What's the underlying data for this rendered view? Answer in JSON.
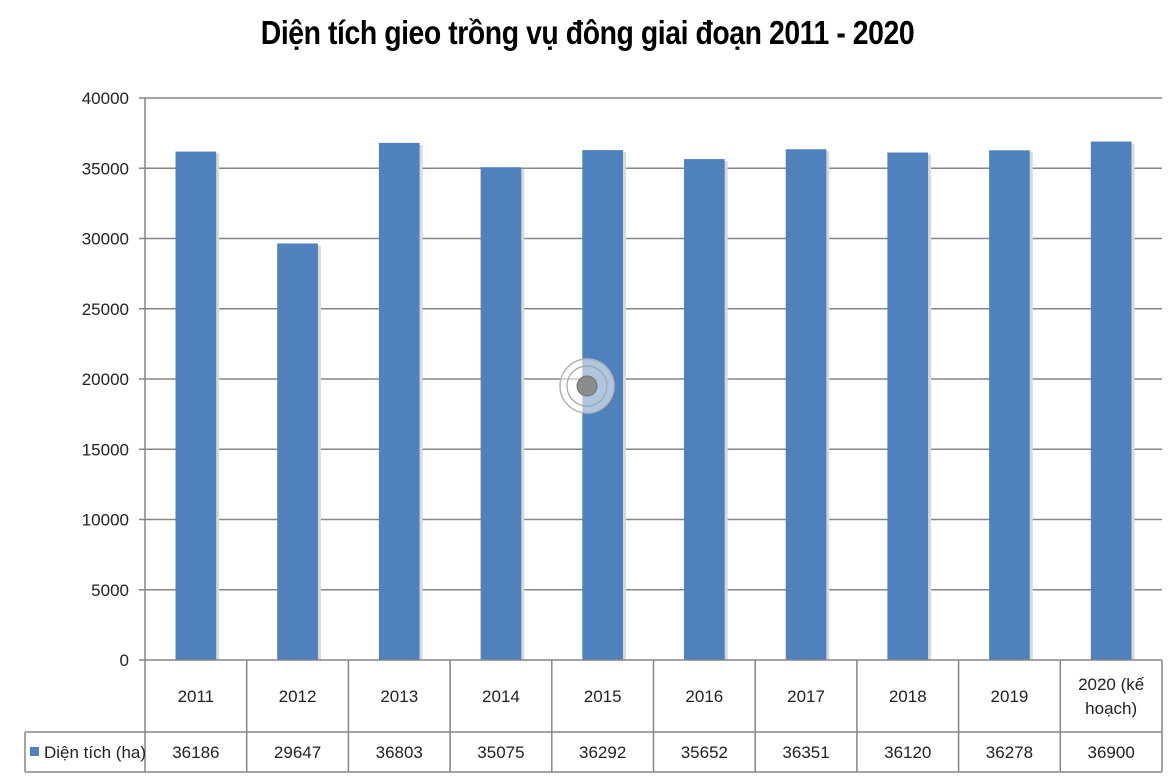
{
  "chart_data": {
    "type": "bar",
    "title": "Diện tích gieo trồng vụ đông giai đoạn 2011 - 2020",
    "categories": [
      "2011",
      "2012",
      "2013",
      "2014",
      "2015",
      "2016",
      "2017",
      "2018",
      "2019",
      "2020 (kế hoạch)"
    ],
    "category_lines": [
      [
        "2011"
      ],
      [
        "2012"
      ],
      [
        "2013"
      ],
      [
        "2014"
      ],
      [
        "2015"
      ],
      [
        "2016"
      ],
      [
        "2017"
      ],
      [
        "2018"
      ],
      [
        "2019"
      ],
      [
        "2020 (kế",
        "hoạch)"
      ]
    ],
    "series": [
      {
        "name": "Diện tích (ha)",
        "values": [
          36186,
          29647,
          36803,
          35075,
          36292,
          35652,
          36351,
          36120,
          36278,
          36900
        ],
        "value_labels": [
          "36186",
          "29647",
          "36803",
          "35075",
          "36292",
          "35652",
          "36351",
          "36120",
          "36278",
          "36900"
        ]
      }
    ],
    "ylim": [
      0,
      40000
    ],
    "yticks": [
      0,
      5000,
      10000,
      15000,
      20000,
      25000,
      30000,
      35000,
      40000
    ],
    "ytick_labels": [
      "0",
      "5000",
      "10000",
      "15000",
      "20000",
      "25000",
      "30000",
      "35000",
      "40000"
    ],
    "grid": true,
    "legend": "data-table",
    "colors": {
      "bar": "#4F81BD",
      "grid": "#868686",
      "table_line": "#868686"
    }
  }
}
